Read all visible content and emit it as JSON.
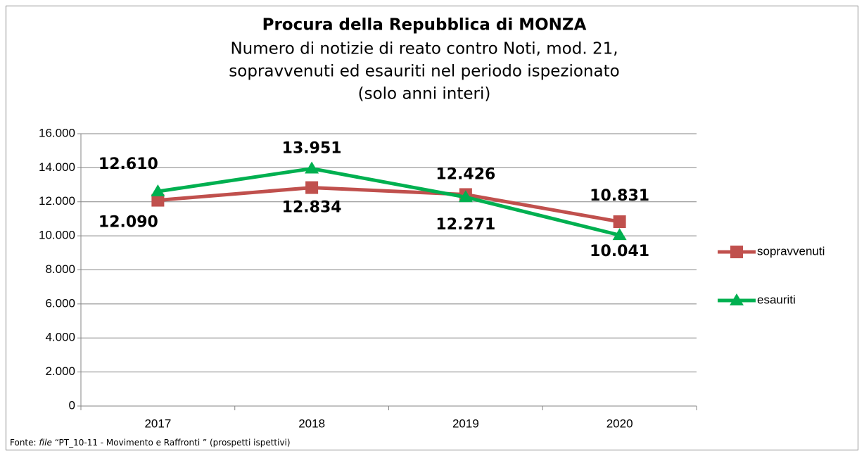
{
  "chart_data": {
    "type": "line",
    "title": "Procura della Repubblica di MONZA",
    "subtitle": [
      "Numero di notizie di reato contro Noti, mod. 21,",
      "sopravvenuti ed esauriti nel periodo ispezionato",
      "(solo anni interi)"
    ],
    "categories": [
      "2017",
      "2018",
      "2019",
      "2020"
    ],
    "series": [
      {
        "name": "sopravvenuti",
        "color": "#c0504d",
        "label_color": "#c00000",
        "marker": "square",
        "values": [
          12090,
          12834,
          12426,
          10831
        ],
        "value_labels": [
          "12.090",
          "12.834",
          "12.426",
          "10.831"
        ]
      },
      {
        "name": "esauriti",
        "color": "#00b050",
        "label_color": "#00b050",
        "marker": "triangle",
        "values": [
          12610,
          13951,
          12271,
          10041
        ],
        "value_labels": [
          "12.610",
          "13.951",
          "12.271",
          "10.041"
        ]
      }
    ],
    "ylim": [
      0,
      16000
    ],
    "yticks": [
      0,
      {
        "value": 2000,
        "label": "2.000"
      },
      {
        "value": 4000,
        "label": "4.000"
      },
      {
        "value": 6000,
        "label": "6.000"
      },
      {
        "value": 8000,
        "label": "8.000"
      },
      {
        "value": 10000,
        "label": "10.000"
      },
      {
        "value": 12000,
        "label": "12.000"
      },
      {
        "value": 14000,
        "label": "14.000"
      },
      {
        "value": 16000,
        "label": "16.000"
      }
    ],
    "grid": true,
    "legend": "right",
    "footer": {
      "prefix": "Fonte:",
      "emphasis": "file",
      "rest": "“PT_10-11 - Movimento e Raffronti ” (prospetti ispettivi)"
    }
  }
}
